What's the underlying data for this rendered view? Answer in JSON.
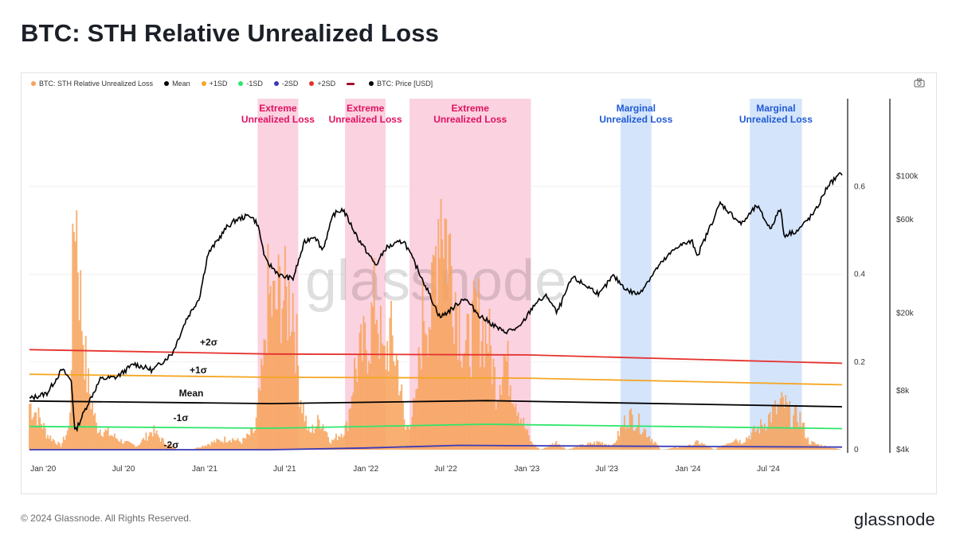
{
  "title": "BTC: STH Relative Unrealized Loss",
  "footer": "© 2024 Glassnode. All Rights Reserved.",
  "brand": "glassnode",
  "watermark": "glassnode",
  "legend": [
    {
      "label": "BTC: STH Relative Unrealized Loss",
      "color": "#f7a35c",
      "shape": "dot"
    },
    {
      "label": "Mean",
      "color": "#000000",
      "shape": "dot"
    },
    {
      "label": "+1SD",
      "color": "#f5a623",
      "shape": "dot"
    },
    {
      "label": "-1SD",
      "color": "#2ee66b",
      "shape": "dot"
    },
    {
      "label": "-2SD",
      "color": "#3a3ab8",
      "shape": "dot"
    },
    {
      "label": "+2SD",
      "color": "#e5322d",
      "shape": "dot"
    },
    {
      "label": "",
      "color": "#a3122a",
      "shape": "dash"
    },
    {
      "label": "BTC: Price [USD]",
      "color": "#000000",
      "shape": "dot"
    }
  ],
  "icons": {
    "camera": "camera-icon"
  },
  "chart_data": {
    "type": "area",
    "x_axis": {
      "range": [
        "2019-12-01",
        "2024-12-15"
      ],
      "ticks": [
        {
          "label": "Jan '20",
          "date": "2020-01-01"
        },
        {
          "label": "Jul '20",
          "date": "2020-07-01"
        },
        {
          "label": "Jan '21",
          "date": "2021-01-01"
        },
        {
          "label": "Jul '21",
          "date": "2021-07-01"
        },
        {
          "label": "Jan '22",
          "date": "2022-01-01"
        },
        {
          "label": "Jul '22",
          "date": "2022-07-01"
        },
        {
          "label": "Jan '23",
          "date": "2023-01-01"
        },
        {
          "label": "Jul '23",
          "date": "2023-07-01"
        },
        {
          "label": "Jan '24",
          "date": "2024-01-01"
        },
        {
          "label": "Jul '24",
          "date": "2024-07-01"
        }
      ]
    },
    "y_axis_left": {
      "range": [
        0,
        0.8
      ],
      "ticks": [
        {
          "label": "0",
          "value": 0
        },
        {
          "label": "0.2",
          "value": 0.2
        },
        {
          "label": "0.4",
          "value": 0.4
        },
        {
          "label": "0.6",
          "value": 0.6
        }
      ]
    },
    "y_axis_right": {
      "scale": "log",
      "range": [
        4000,
        250000
      ],
      "ticks": [
        {
          "label": "$4k",
          "value": 4000
        },
        {
          "label": "$8k",
          "value": 8000
        },
        {
          "label": "$20k",
          "value": 20000
        },
        {
          "label": "$60k",
          "value": 60000
        },
        {
          "label": "$100k",
          "value": 100000
        }
      ]
    },
    "bands": [
      {
        "label": [
          "Extreme",
          "Unrealized Loss"
        ],
        "start": "2021-05-01",
        "end": "2021-08-01",
        "fill": "#fbd2e0",
        "text_color": "#e0115f"
      },
      {
        "label": [
          "Extreme",
          "Unrealized Loss"
        ],
        "start": "2021-11-15",
        "end": "2022-02-15",
        "fill": "#fbd2e0",
        "text_color": "#e0115f"
      },
      {
        "label": [
          "Extreme",
          "Unrealized Loss"
        ],
        "start": "2022-04-10",
        "end": "2023-01-10",
        "fill": "#fbd2e0",
        "text_color": "#e0115f"
      },
      {
        "label": [
          "Marginal",
          "Unrealized Loss"
        ],
        "start": "2023-08-01",
        "end": "2023-10-10",
        "fill": "#d4e4fb",
        "text_color": "#1f5ad6"
      },
      {
        "label": [
          "Marginal",
          "Unrealized Loss"
        ],
        "start": "2024-05-20",
        "end": "2024-09-15",
        "fill": "#d4e4fb",
        "text_color": "#1f5ad6"
      }
    ],
    "sd_lines": [
      {
        "name": "+2SD",
        "annotation": "+2σ",
        "color": "#e5322d",
        "points": [
          [
            "2019-12-01",
            0.228
          ],
          [
            "2021-06-01",
            0.218
          ],
          [
            "2023-01-01",
            0.216
          ],
          [
            "2024-12-15",
            0.197
          ]
        ]
      },
      {
        "name": "+1SD",
        "annotation": "+1σ",
        "color": "#f5a623",
        "points": [
          [
            "2019-12-01",
            0.172
          ],
          [
            "2021-06-01",
            0.165
          ],
          [
            "2023-01-01",
            0.163
          ],
          [
            "2024-12-15",
            0.148
          ]
        ]
      },
      {
        "name": "Mean",
        "annotation": "Mean",
        "color": "#000000",
        "points": [
          [
            "2019-12-01",
            0.111
          ],
          [
            "2021-06-01",
            0.105
          ],
          [
            "2022-10-01",
            0.112
          ],
          [
            "2024-12-15",
            0.098
          ]
        ]
      },
      {
        "name": "-1SD",
        "annotation": "-1σ",
        "color": "#2ee66b",
        "points": [
          [
            "2019-12-01",
            0.053
          ],
          [
            "2021-06-01",
            0.049
          ],
          [
            "2022-10-01",
            0.058
          ],
          [
            "2024-12-15",
            0.048
          ]
        ]
      },
      {
        "name": "-2SD",
        "annotation": "-2σ",
        "color": "#3a3ab8",
        "points": [
          [
            "2019-12-01",
            0.0
          ],
          [
            "2021-06-01",
            0.0
          ],
          [
            "2022-01-01",
            0.004
          ],
          [
            "2022-08-01",
            0.01
          ],
          [
            "2023-01-01",
            0.009
          ],
          [
            "2024-12-15",
            0.006
          ]
        ]
      }
    ],
    "series": [
      {
        "name": "BTC: STH Relative Unrealized Loss",
        "color": "#f7a35c",
        "points": [
          [
            "2019-12-01",
            0.12
          ],
          [
            "2019-12-20",
            0.09
          ],
          [
            "2020-01-10",
            0.04
          ],
          [
            "2020-02-10",
            0.01
          ],
          [
            "2020-03-01",
            0.06
          ],
          [
            "2020-03-13",
            0.7
          ],
          [
            "2020-03-25",
            0.4
          ],
          [
            "2020-04-10",
            0.18
          ],
          [
            "2020-05-01",
            0.06
          ],
          [
            "2020-06-01",
            0.04
          ],
          [
            "2020-07-01",
            0.02
          ],
          [
            "2020-08-01",
            0.01
          ],
          [
            "2020-09-05",
            0.05
          ],
          [
            "2020-10-01",
            0.02
          ],
          [
            "2020-11-01",
            0.0
          ],
          [
            "2020-12-01",
            0.0
          ],
          [
            "2021-01-22",
            0.02
          ],
          [
            "2021-02-28",
            0.03
          ],
          [
            "2021-03-25",
            0.02
          ],
          [
            "2021-04-25",
            0.05
          ],
          [
            "2021-05-15",
            0.22
          ],
          [
            "2021-05-23",
            0.4
          ],
          [
            "2021-06-10",
            0.36
          ],
          [
            "2021-06-22",
            0.42
          ],
          [
            "2021-07-05",
            0.38
          ],
          [
            "2021-07-20",
            0.4
          ],
          [
            "2021-08-05",
            0.15
          ],
          [
            "2021-08-25",
            0.04
          ],
          [
            "2021-09-21",
            0.08
          ],
          [
            "2021-10-15",
            0.02
          ],
          [
            "2021-11-20",
            0.06
          ],
          [
            "2021-12-05",
            0.2
          ],
          [
            "2022-01-10",
            0.3
          ],
          [
            "2022-01-24",
            0.4
          ],
          [
            "2022-02-10",
            0.22
          ],
          [
            "2022-02-25",
            0.3
          ],
          [
            "2022-03-15",
            0.22
          ],
          [
            "2022-04-01",
            0.05
          ],
          [
            "2022-04-25",
            0.12
          ],
          [
            "2022-05-12",
            0.38
          ],
          [
            "2022-05-30",
            0.35
          ],
          [
            "2022-06-18",
            0.68
          ],
          [
            "2022-07-05",
            0.55
          ],
          [
            "2022-07-25",
            0.4
          ],
          [
            "2022-08-15",
            0.25
          ],
          [
            "2022-09-10",
            0.35
          ],
          [
            "2022-10-05",
            0.3
          ],
          [
            "2022-10-25",
            0.15
          ],
          [
            "2022-11-10",
            0.25
          ],
          [
            "2022-11-22",
            0.2
          ],
          [
            "2022-12-20",
            0.08
          ],
          [
            "2023-01-10",
            0.02
          ],
          [
            "2023-02-01",
            0.0
          ],
          [
            "2023-03-10",
            0.02
          ],
          [
            "2023-04-01",
            0.0
          ],
          [
            "2023-05-01",
            0.01
          ],
          [
            "2023-06-15",
            0.02
          ],
          [
            "2023-07-15",
            0.01
          ],
          [
            "2023-08-18",
            0.09
          ],
          [
            "2023-09-11",
            0.07
          ],
          [
            "2023-10-10",
            0.03
          ],
          [
            "2023-11-01",
            0.0
          ],
          [
            "2024-01-05",
            0.01
          ],
          [
            "2024-01-24",
            0.02
          ],
          [
            "2024-03-01",
            0.0
          ],
          [
            "2024-04-17",
            0.03
          ],
          [
            "2024-05-01",
            0.02
          ],
          [
            "2024-06-24",
            0.07
          ],
          [
            "2024-07-06",
            0.09
          ],
          [
            "2024-08-05",
            0.12
          ],
          [
            "2024-08-25",
            0.08
          ],
          [
            "2024-09-08",
            0.09
          ],
          [
            "2024-10-01",
            0.02
          ],
          [
            "2024-11-01",
            0.01
          ],
          [
            "2024-12-15",
            0.0
          ]
        ]
      },
      {
        "name": "BTC: Price [USD]",
        "color": "#000000",
        "points": [
          [
            "2019-12-01",
            7300
          ],
          [
            "2020-01-10",
            7800
          ],
          [
            "2020-02-13",
            10300
          ],
          [
            "2020-03-05",
            9000
          ],
          [
            "2020-03-13",
            4900
          ],
          [
            "2020-04-10",
            6800
          ],
          [
            "2020-05-10",
            9200
          ],
          [
            "2020-06-15",
            9400
          ],
          [
            "2020-07-25",
            11000
          ],
          [
            "2020-09-05",
            10200
          ],
          [
            "2020-10-20",
            12500
          ],
          [
            "2020-11-20",
            18500
          ],
          [
            "2020-12-20",
            24000
          ],
          [
            "2021-01-08",
            40000
          ],
          [
            "2021-02-20",
            55000
          ],
          [
            "2021-03-13",
            60000
          ],
          [
            "2021-04-14",
            63500
          ],
          [
            "2021-05-01",
            57000
          ],
          [
            "2021-05-19",
            37000
          ],
          [
            "2021-06-22",
            31000
          ],
          [
            "2021-07-20",
            30000
          ],
          [
            "2021-08-15",
            46000
          ],
          [
            "2021-09-07",
            50000
          ],
          [
            "2021-09-25",
            42000
          ],
          [
            "2021-10-20",
            64000
          ],
          [
            "2021-11-10",
            68000
          ],
          [
            "2021-12-15",
            48000
          ],
          [
            "2022-01-24",
            35000
          ],
          [
            "2022-02-15",
            43000
          ],
          [
            "2022-03-28",
            47000
          ],
          [
            "2022-05-12",
            29000
          ],
          [
            "2022-06-18",
            19000
          ],
          [
            "2022-07-15",
            21000
          ],
          [
            "2022-08-12",
            24000
          ],
          [
            "2022-09-15",
            19500
          ],
          [
            "2022-11-09",
            16000
          ],
          [
            "2022-12-15",
            16800
          ],
          [
            "2023-01-20",
            22500
          ],
          [
            "2023-02-16",
            24500
          ],
          [
            "2023-03-10",
            20000
          ],
          [
            "2023-04-14",
            30500
          ],
          [
            "2023-06-15",
            25000
          ],
          [
            "2023-07-15",
            31000
          ],
          [
            "2023-08-18",
            26000
          ],
          [
            "2023-09-11",
            25000
          ],
          [
            "2023-10-25",
            34500
          ],
          [
            "2023-12-08",
            44000
          ],
          [
            "2024-01-10",
            46500
          ],
          [
            "2024-01-23",
            39500
          ],
          [
            "2024-03-14",
            73000
          ],
          [
            "2024-05-01",
            57000
          ],
          [
            "2024-06-05",
            71000
          ],
          [
            "2024-07-05",
            54000
          ],
          [
            "2024-07-29",
            69000
          ],
          [
            "2024-08-05",
            50000
          ],
          [
            "2024-09-06",
            53000
          ],
          [
            "2024-10-15",
            66000
          ],
          [
            "2024-11-13",
            90000
          ],
          [
            "2024-12-05",
            100000
          ],
          [
            "2024-12-15",
            104000
          ]
        ]
      }
    ]
  }
}
